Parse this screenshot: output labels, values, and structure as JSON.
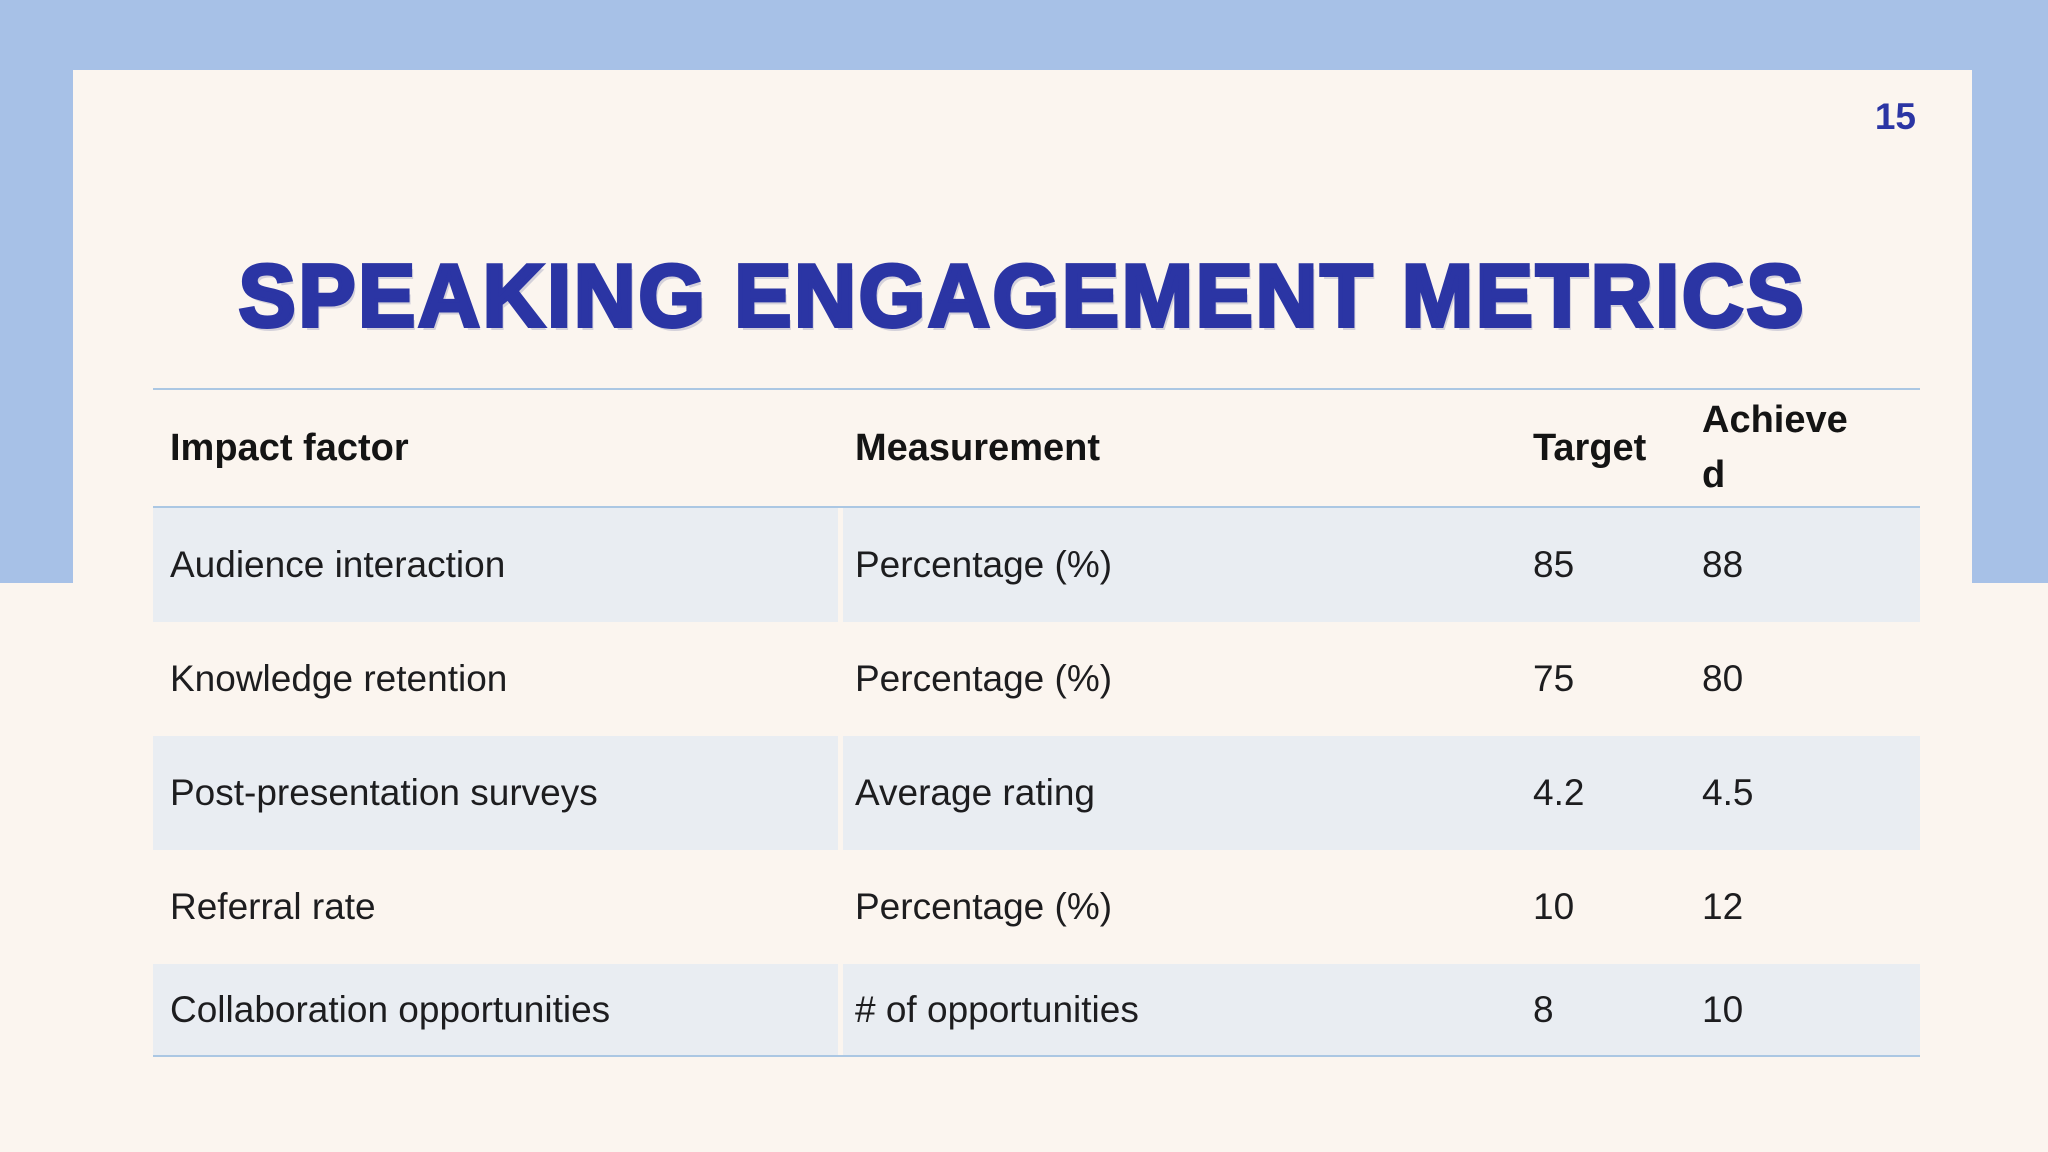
{
  "page": {
    "number": "15"
  },
  "title": "SPEAKING ENGAGEMENT METRICS",
  "colors": {
    "frame_blue": "#a7c1e7",
    "accent_dark_blue": "#2b35a4",
    "card_cream": "#fbf5ef",
    "row_stripe": "#e9edf2",
    "table_border_blue": "#abc7e3",
    "text_dark": "#1d1d1f"
  },
  "table": {
    "columns": [
      "Impact factor",
      "Measurement",
      "Target",
      "Achieved"
    ],
    "rows": [
      {
        "factor": "Audience interaction",
        "measurement": "Percentage (%)",
        "target": "85",
        "achieved": "88"
      },
      {
        "factor": "Knowledge retention",
        "measurement": "Percentage (%)",
        "target": "75",
        "achieved": "80"
      },
      {
        "factor": "Post-presentation surveys",
        "measurement": "Average rating",
        "target": "4.2",
        "achieved": "4.5"
      },
      {
        "factor": "Referral rate",
        "measurement": "Percentage (%)",
        "target": "10",
        "achieved": "12"
      },
      {
        "factor": "Collaboration opportunities",
        "measurement": "# of opportunities",
        "target": "8",
        "achieved": "10"
      }
    ]
  }
}
